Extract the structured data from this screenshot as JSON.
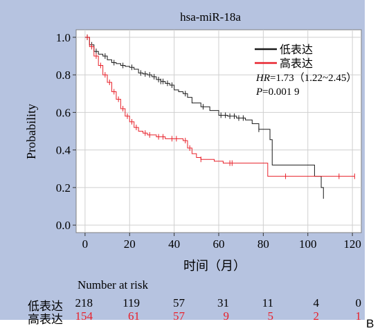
{
  "chart_data": {
    "type": "line",
    "title": "hsa-miR-18a",
    "xlabel": "时间（月）",
    "ylabel": "Probability",
    "xlim": [
      -4,
      124
    ],
    "ylim": [
      -0.04,
      1.04
    ],
    "xticks": [
      "0",
      "20",
      "40",
      "60",
      "80",
      "100",
      "120"
    ],
    "yticks": [
      "0.0",
      "0.2",
      "0.4",
      "0.6",
      "0.8",
      "1.0"
    ],
    "grid": true,
    "legend_position": "top-right",
    "annotations": {
      "hr_label": "HR",
      "hr_value": "=1.73（1.22~2.45）",
      "p_label": "P",
      "p_value": "=0.001 9"
    },
    "series": [
      {
        "name": "低表达",
        "color": "#1a1a1a",
        "x": [
          0,
          2,
          4,
          6,
          8,
          10,
          12,
          14,
          16,
          18,
          20,
          22,
          24,
          26,
          28,
          30,
          32,
          34,
          36,
          38,
          40,
          42,
          44,
          46,
          48,
          52,
          56,
          60,
          64,
          68,
          72,
          75,
          78,
          81,
          83,
          84,
          86,
          90,
          95,
          100,
          103,
          105,
          106,
          107
        ],
        "y": [
          1.0,
          0.96,
          0.925,
          0.91,
          0.9,
          0.88,
          0.865,
          0.86,
          0.85,
          0.845,
          0.84,
          0.83,
          0.81,
          0.805,
          0.8,
          0.79,
          0.775,
          0.765,
          0.755,
          0.745,
          0.72,
          0.71,
          0.7,
          0.68,
          0.65,
          0.63,
          0.61,
          0.585,
          0.58,
          0.57,
          0.56,
          0.54,
          0.51,
          0.51,
          0.455,
          0.32,
          0.32,
          0.32,
          0.32,
          0.32,
          0.26,
          0.26,
          0.2,
          0.14
        ],
        "censored_x": [
          1,
          3,
          5,
          9,
          13,
          17,
          21,
          25,
          27,
          29,
          31,
          33,
          34,
          35,
          37,
          39,
          45,
          53,
          61,
          63,
          65,
          67,
          69,
          71,
          78
        ]
      },
      {
        "name": "高表达",
        "color": "#e8202a",
        "x": [
          0,
          2,
          4,
          6,
          8,
          10,
          12,
          14,
          16,
          18,
          20,
          22,
          24,
          26,
          28,
          32,
          36,
          40,
          44,
          46,
          48,
          50,
          52,
          58,
          62,
          64,
          70,
          80,
          82,
          84,
          95,
          105,
          110,
          115,
          121
        ],
        "y": [
          1.0,
          0.95,
          0.9,
          0.85,
          0.8,
          0.76,
          0.71,
          0.67,
          0.62,
          0.58,
          0.55,
          0.52,
          0.5,
          0.49,
          0.48,
          0.47,
          0.46,
          0.46,
          0.45,
          0.41,
          0.38,
          0.36,
          0.35,
          0.34,
          0.33,
          0.33,
          0.33,
          0.33,
          0.26,
          0.26,
          0.26,
          0.26,
          0.26,
          0.26,
          0.26
        ],
        "censored_x": [
          1,
          3,
          5,
          7,
          9,
          11,
          13,
          15,
          17,
          19,
          21,
          23,
          27,
          29,
          33,
          35,
          39,
          41,
          45,
          47,
          52,
          65,
          66,
          90,
          114,
          121
        ]
      }
    ]
  },
  "risk_table": {
    "title": "Number at risk",
    "rows": [
      {
        "label": "低表达",
        "values": [
          "218",
          "119",
          "57",
          "31",
          "11",
          "4",
          "0"
        ]
      },
      {
        "label": "高表达",
        "values": [
          "154",
          "61",
          "57",
          "9",
          "5",
          "2",
          "1"
        ]
      }
    ]
  },
  "panel_letter": "B"
}
